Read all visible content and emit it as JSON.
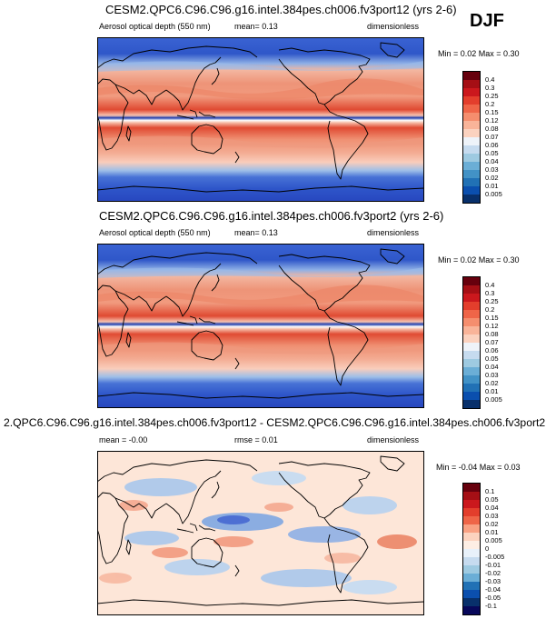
{
  "season": "DJF",
  "panels": [
    {
      "title": "CESM2.QPC6.C96.C96.g16.intel.384pes.ch006.fv3port12 (yrs 2-6)",
      "left_label": "Aerosol optical depth (550 nm)",
      "stat1": "mean=  0.13",
      "stat2": "",
      "units": "dimensionless",
      "minmax": "Min =  0.02 Max =   0.30",
      "colorbar_labels": [
        "0.4",
        "0.3",
        "0.25",
        "0.2",
        "0.15",
        "0.12",
        "0.08",
        "0.07",
        "0.06",
        "0.05",
        "0.04",
        "0.03",
        "0.02",
        "0.01",
        "0.005"
      ]
    },
    {
      "title": "CESM2.QPC6.C96.C96.g16.intel.384pes.ch006.fv3port2 (yrs 2-6)",
      "left_label": "Aerosol optical depth (550 nm)",
      "stat1": "mean=  0.13",
      "stat2": "",
      "units": "dimensionless",
      "minmax": "Min =  0.02 Max =   0.30",
      "colorbar_labels": [
        "0.4",
        "0.3",
        "0.25",
        "0.2",
        "0.15",
        "0.12",
        "0.08",
        "0.07",
        "0.06",
        "0.05",
        "0.04",
        "0.03",
        "0.02",
        "0.01",
        "0.005"
      ]
    },
    {
      "title": "2.QPC6.C96.C96.g16.intel.384pes.ch006.fv3port12 - CESM2.QPC6.C96.C96.g16.intel.384pes.ch006.fv3port2",
      "left_label": "",
      "stat1": "mean =  -0.00",
      "stat2": "rmse =   0.01",
      "units": "dimensionless",
      "minmax": "Min =  -0.04 Max =   0.03",
      "colorbar_labels": [
        "0.1",
        "0.05",
        "0.04",
        "0.03",
        "0.02",
        "0.01",
        "0.005",
        "0",
        "-0.005",
        "-0.01",
        "-0.02",
        "-0.03",
        "-0.04",
        "-0.05",
        "-0.1"
      ]
    }
  ],
  "colors": {
    "abs_scale": [
      "#67000d",
      "#a50f15",
      "#cb181d",
      "#e33e2c",
      "#ef6548",
      "#f58e6e",
      "#f9b499",
      "#fbd2bf",
      "#e7eef7",
      "#c6dbef",
      "#9ecae1",
      "#6baed6",
      "#4292c6",
      "#2171b5",
      "#0b4fae",
      "#08306b"
    ],
    "diff_scale": [
      "#67000d",
      "#a50f15",
      "#cb181d",
      "#e33e2c",
      "#ef6548",
      "#f9a183",
      "#fcd3bf",
      "#fdeee4",
      "#e8f1fa",
      "#c6dbef",
      "#9ecae1",
      "#6baed6",
      "#2171b5",
      "#0b4fae",
      "#08306b",
      "#08085a"
    ]
  }
}
